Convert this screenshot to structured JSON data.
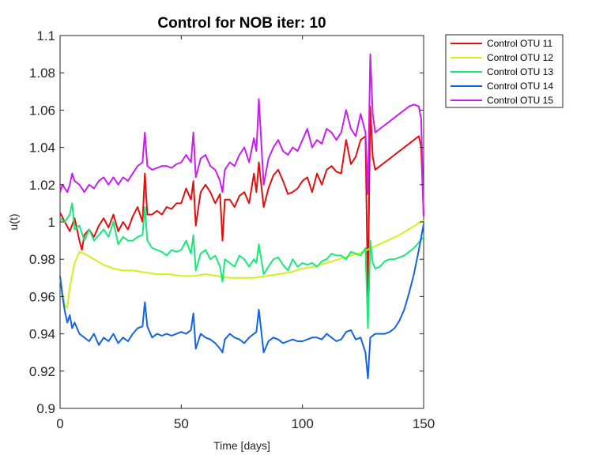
{
  "chart_data": {
    "type": "line",
    "title": "Control for NOB iter: 10",
    "xlabel": "Time [days]",
    "ylabel": "u(t)",
    "xlim": [
      0,
      150
    ],
    "ylim": [
      0.9,
      1.1
    ],
    "xticks": [
      0,
      50,
      100,
      150
    ],
    "xtick_labels": [
      "0",
      "50",
      "100",
      "150"
    ],
    "yticks": [
      0.9,
      0.92,
      0.94,
      0.96,
      0.98,
      1.0,
      1.02,
      1.04,
      1.06,
      1.08,
      1.1
    ],
    "ytick_labels": [
      "0.9",
      "0.92",
      "0.94",
      "0.96",
      "0.98",
      "1",
      "1.02",
      "1.04",
      "1.06",
      "1.08",
      "1.1"
    ],
    "grid": false,
    "legend_position": "outside-top-right",
    "series": [
      {
        "name": "Control OTU 11",
        "color": "#e01010",
        "x": [
          0,
          2,
          4,
          6,
          8,
          9,
          10,
          12,
          14,
          16,
          18,
          20,
          22,
          24,
          26,
          28,
          30,
          32,
          34,
          35,
          36,
          38,
          40,
          42,
          44,
          46,
          48,
          50,
          52,
          54,
          55,
          56,
          58,
          60,
          62,
          64,
          66,
          67,
          68,
          70,
          72,
          74,
          76,
          78,
          80,
          81,
          82,
          84,
          86,
          88,
          90,
          92,
          94,
          96,
          98,
          100,
          102,
          104,
          106,
          108,
          110,
          112,
          114,
          116,
          118,
          120,
          122,
          124,
          126,
          127,
          128,
          129,
          130,
          132,
          134,
          136,
          138,
          140,
          142,
          144,
          146,
          148,
          149,
          150
        ],
        "y": [
          1.005,
          1.0,
          0.995,
          1.002,
          0.99,
          0.985,
          0.993,
          0.996,
          0.992,
          0.998,
          1.002,
          0.997,
          1.004,
          0.995,
          1.0,
          0.996,
          1.003,
          1.008,
          1.0,
          1.026,
          1.004,
          1.004,
          1.006,
          1.004,
          1.008,
          1.007,
          1.01,
          1.01,
          1.018,
          1.012,
          1.022,
          0.998,
          1.016,
          1.02,
          1.016,
          1.01,
          1.015,
          0.99,
          1.012,
          1.012,
          1.008,
          1.014,
          1.016,
          1.01,
          1.026,
          1.016,
          1.032,
          1.008,
          1.018,
          1.025,
          1.028,
          1.022,
          1.015,
          1.016,
          1.018,
          1.022,
          1.024,
          1.016,
          1.026,
          1.02,
          1.028,
          1.03,
          1.027,
          1.026,
          1.044,
          1.031,
          1.035,
          1.044,
          1.046,
          0.96,
          1.062,
          1.035,
          1.028,
          1.03,
          1.032,
          1.034,
          1.036,
          1.038,
          1.04,
          1.042,
          1.044,
          1.046,
          1.04,
          1.003
        ]
      },
      {
        "name": "Control OTU 12",
        "color": "#d4f018",
        "x": [
          0,
          2,
          3,
          4,
          6,
          8,
          10,
          14,
          18,
          22,
          26,
          30,
          35,
          40,
          45,
          50,
          55,
          60,
          65,
          70,
          75,
          80,
          85,
          90,
          95,
          100,
          105,
          110,
          115,
          120,
          125,
          130,
          135,
          140,
          145,
          150
        ],
        "y": [
          0.97,
          0.955,
          0.954,
          0.965,
          0.978,
          0.984,
          0.983,
          0.98,
          0.977,
          0.975,
          0.974,
          0.974,
          0.973,
          0.972,
          0.972,
          0.971,
          0.971,
          0.972,
          0.971,
          0.97,
          0.97,
          0.97,
          0.971,
          0.972,
          0.973,
          0.975,
          0.976,
          0.978,
          0.98,
          0.982,
          0.984,
          0.987,
          0.99,
          0.993,
          0.997,
          1.001
        ]
      },
      {
        "name": "Control OTU 13",
        "color": "#18e878",
        "x": [
          0,
          2,
          4,
          5,
          6,
          8,
          10,
          12,
          14,
          16,
          18,
          20,
          22,
          24,
          26,
          28,
          30,
          32,
          34,
          35,
          36,
          38,
          40,
          42,
          44,
          46,
          48,
          50,
          52,
          54,
          55,
          56,
          58,
          60,
          62,
          64,
          66,
          67,
          68,
          70,
          72,
          74,
          76,
          78,
          80,
          81,
          82,
          84,
          86,
          88,
          90,
          92,
          94,
          96,
          98,
          100,
          102,
          104,
          106,
          108,
          110,
          112,
          114,
          116,
          118,
          120,
          122,
          124,
          126,
          127,
          128,
          129,
          130,
          132,
          134,
          136,
          138,
          140,
          142,
          144,
          146,
          148,
          150
        ],
        "y": [
          1.002,
          1.0,
          1.004,
          1.01,
          0.996,
          0.998,
          0.99,
          0.996,
          0.99,
          0.993,
          0.996,
          0.992,
          1.0,
          0.988,
          0.992,
          0.99,
          0.99,
          0.992,
          0.993,
          1.008,
          0.99,
          0.986,
          0.985,
          0.984,
          0.982,
          0.985,
          0.984,
          0.985,
          0.99,
          0.983,
          0.993,
          0.974,
          0.983,
          0.985,
          0.98,
          0.982,
          0.976,
          0.968,
          0.98,
          0.978,
          0.976,
          0.982,
          0.98,
          0.976,
          0.98,
          0.978,
          0.988,
          0.972,
          0.976,
          0.98,
          0.981,
          0.977,
          0.974,
          0.98,
          0.976,
          0.978,
          0.977,
          0.978,
          0.976,
          0.979,
          0.98,
          0.983,
          0.982,
          0.982,
          0.98,
          0.984,
          0.983,
          0.982,
          0.986,
          0.943,
          0.99,
          0.978,
          0.975,
          0.976,
          0.979,
          0.98,
          0.98,
          0.981,
          0.982,
          0.984,
          0.986,
          0.989,
          0.992
        ]
      },
      {
        "name": "Control OTU 14",
        "color": "#1264e0",
        "x": [
          0,
          1,
          2,
          3,
          4,
          5,
          6,
          8,
          10,
          12,
          14,
          16,
          18,
          20,
          22,
          24,
          26,
          28,
          30,
          32,
          34,
          35,
          36,
          38,
          40,
          42,
          44,
          46,
          48,
          50,
          52,
          54,
          55,
          56,
          58,
          60,
          62,
          64,
          66,
          67,
          68,
          70,
          72,
          74,
          76,
          78,
          80,
          81,
          82,
          84,
          86,
          88,
          90,
          92,
          94,
          96,
          98,
          100,
          102,
          104,
          106,
          108,
          110,
          112,
          114,
          116,
          118,
          120,
          122,
          124,
          126,
          127,
          128,
          130,
          132,
          134,
          136,
          138,
          140,
          142,
          144,
          146,
          148,
          150
        ],
        "y": [
          0.971,
          0.96,
          0.952,
          0.946,
          0.95,
          0.943,
          0.946,
          0.94,
          0.938,
          0.936,
          0.94,
          0.934,
          0.938,
          0.936,
          0.94,
          0.935,
          0.938,
          0.936,
          0.94,
          0.943,
          0.944,
          0.957,
          0.944,
          0.938,
          0.94,
          0.939,
          0.94,
          0.939,
          0.94,
          0.941,
          0.94,
          0.942,
          0.951,
          0.932,
          0.94,
          0.938,
          0.937,
          0.935,
          0.932,
          0.93,
          0.937,
          0.94,
          0.938,
          0.937,
          0.935,
          0.938,
          0.94,
          0.941,
          0.953,
          0.93,
          0.936,
          0.938,
          0.937,
          0.935,
          0.936,
          0.937,
          0.936,
          0.936,
          0.937,
          0.938,
          0.938,
          0.937,
          0.94,
          0.938,
          0.936,
          0.937,
          0.941,
          0.942,
          0.937,
          0.938,
          0.93,
          0.916,
          0.938,
          0.94,
          0.94,
          0.94,
          0.941,
          0.943,
          0.947,
          0.953,
          0.962,
          0.972,
          0.985,
          0.999
        ]
      },
      {
        "name": "Control OTU 15",
        "color": "#c81ef0",
        "x": [
          0,
          1,
          2,
          3,
          4,
          5,
          6,
          8,
          10,
          12,
          14,
          16,
          18,
          20,
          22,
          24,
          26,
          28,
          30,
          32,
          34,
          35,
          36,
          38,
          40,
          42,
          44,
          46,
          48,
          50,
          52,
          54,
          55,
          56,
          58,
          60,
          62,
          64,
          66,
          67,
          68,
          70,
          72,
          74,
          76,
          78,
          80,
          81,
          82,
          84,
          86,
          88,
          90,
          92,
          94,
          96,
          98,
          100,
          102,
          104,
          106,
          108,
          110,
          112,
          114,
          116,
          118,
          120,
          122,
          124,
          126,
          127,
          128,
          129,
          130,
          132,
          134,
          136,
          138,
          140,
          142,
          144,
          146,
          148,
          149,
          150
        ],
        "y": [
          1.016,
          1.02,
          1.018,
          1.016,
          1.02,
          1.026,
          1.022,
          1.02,
          1.016,
          1.02,
          1.018,
          1.022,
          1.024,
          1.02,
          1.024,
          1.02,
          1.024,
          1.022,
          1.026,
          1.03,
          1.032,
          1.048,
          1.03,
          1.028,
          1.029,
          1.03,
          1.03,
          1.029,
          1.031,
          1.032,
          1.036,
          1.032,
          1.048,
          1.024,
          1.034,
          1.036,
          1.03,
          1.028,
          1.022,
          1.016,
          1.028,
          1.032,
          1.03,
          1.036,
          1.04,
          1.032,
          1.045,
          1.038,
          1.066,
          1.02,
          1.034,
          1.04,
          1.044,
          1.038,
          1.036,
          1.04,
          1.038,
          1.044,
          1.05,
          1.04,
          1.044,
          1.042,
          1.05,
          1.048,
          1.044,
          1.048,
          1.06,
          1.05,
          1.046,
          1.058,
          1.048,
          1.015,
          1.09,
          1.058,
          1.048,
          1.05,
          1.052,
          1.054,
          1.056,
          1.058,
          1.06,
          1.062,
          1.063,
          1.062,
          1.055,
          1.003
        ]
      }
    ]
  }
}
